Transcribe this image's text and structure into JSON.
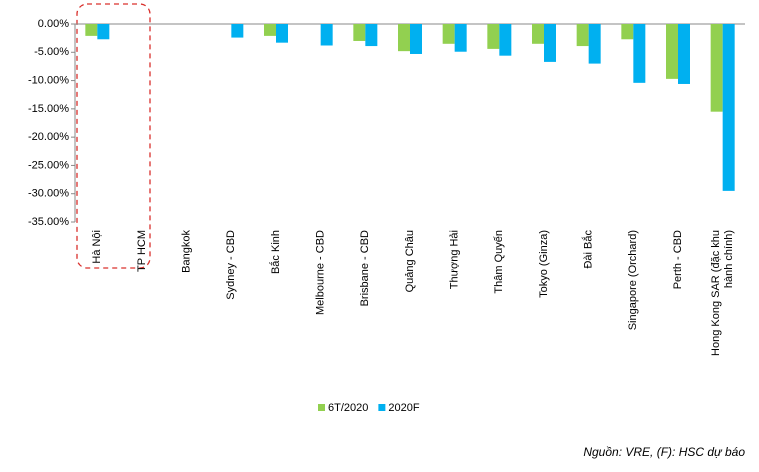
{
  "chart_data": {
    "type": "bar",
    "categories": [
      "Hà Nội",
      "TP HCM",
      "Bangkok",
      "Sydney - CBD",
      "Bắc Kinh",
      "Melbourne - CBD",
      "Brisbane - CBD",
      "Quảng Châu",
      "Thượng Hải",
      "Thâm Quyến",
      "Tokyo (Ginza)",
      "Đài Bắc",
      "Singapore (Orchard)",
      "Perth - CBD",
      "Hong Kong SAR (đặc khu hành chính)"
    ],
    "series": [
      {
        "name": "6T/2020",
        "color": "#92d050",
        "values": [
          -2.1,
          null,
          null,
          null,
          -2.1,
          null,
          -3.0,
          -4.8,
          -3.5,
          -4.4,
          -3.5,
          -3.9,
          -2.7,
          -9.7,
          -15.5
        ]
      },
      {
        "name": "2020F",
        "color": "#00b0f0",
        "values": [
          -2.7,
          null,
          null,
          -2.4,
          -3.3,
          -3.8,
          -3.9,
          -5.3,
          -4.9,
          -5.6,
          -6.7,
          -7.0,
          -10.4,
          -10.6,
          -29.5
        ]
      }
    ],
    "ylim": [
      -35,
      0
    ],
    "yticks": [
      {
        "value": 0,
        "label": "0.00%"
      },
      {
        "value": -5,
        "label": "-5.00%"
      },
      {
        "value": -10,
        "label": "-10.00%"
      },
      {
        "value": -15,
        "label": "-15.00%"
      },
      {
        "value": -20,
        "label": "-20.00%"
      },
      {
        "value": -25,
        "label": "-25.00%"
      },
      {
        "value": -30,
        "label": "-30.00%"
      },
      {
        "value": -35,
        "label": "-35.00%"
      }
    ],
    "grid": false,
    "legend": "bottom",
    "source": "Nguồn: VRE, (F): HSC dự báo"
  }
}
